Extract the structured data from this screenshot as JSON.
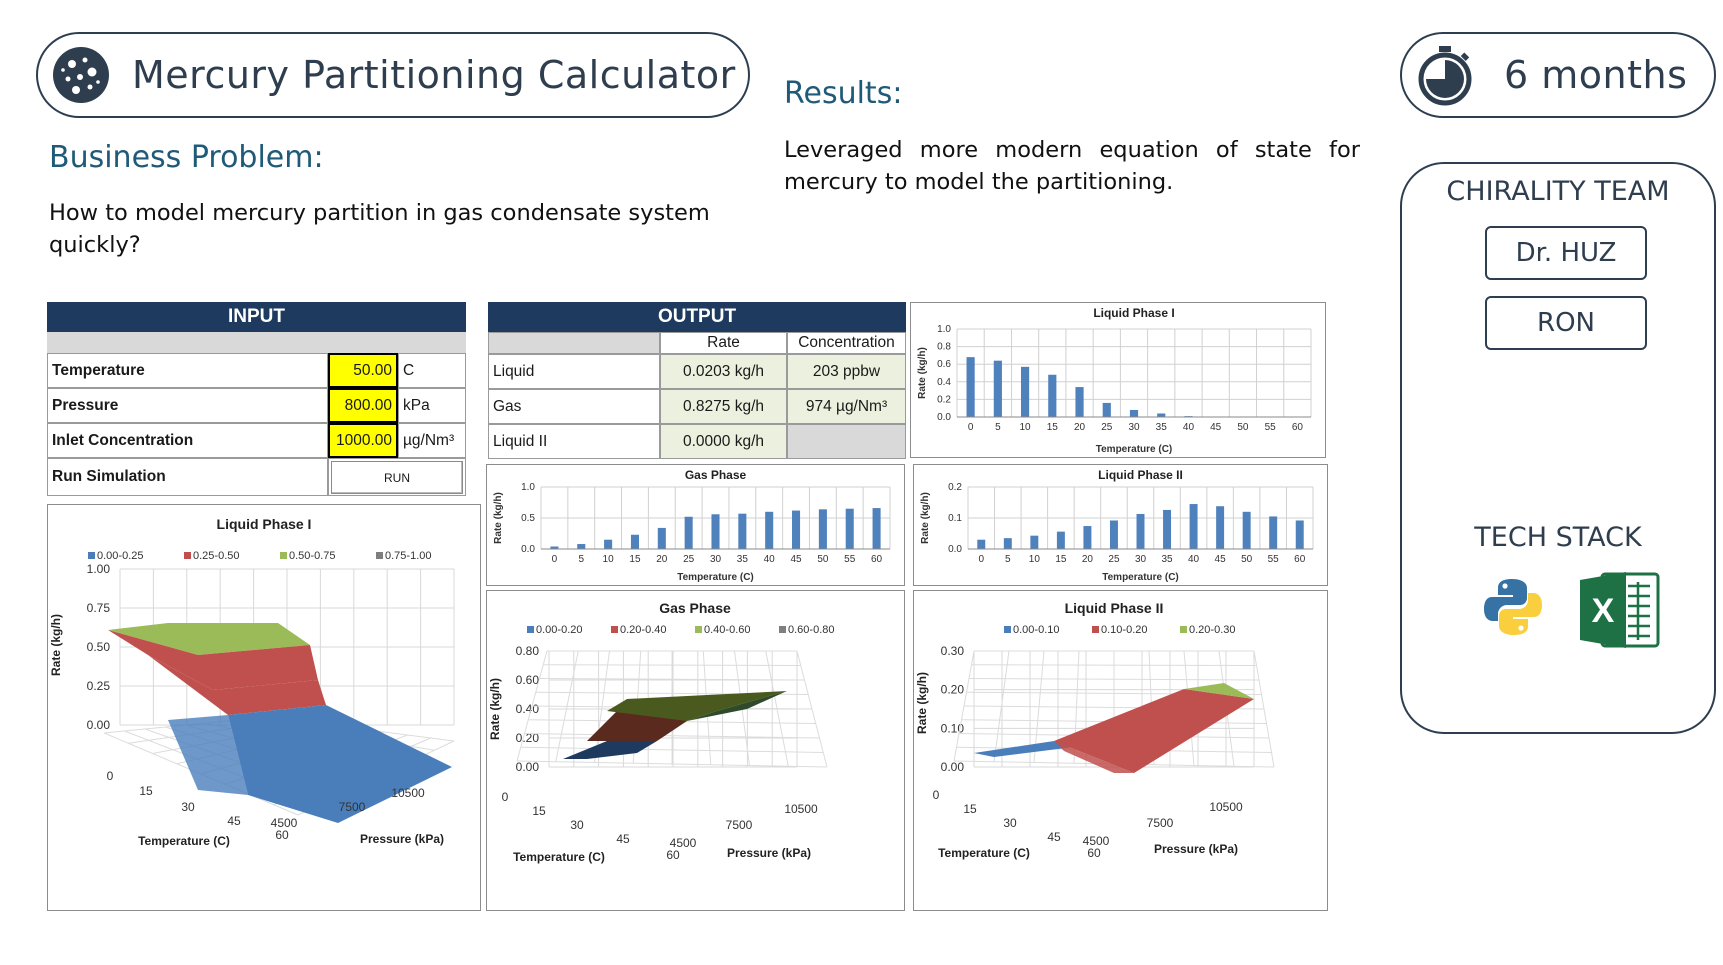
{
  "header": {
    "title": "Mercury Partitioning Calculator",
    "duration": "6 months"
  },
  "business_problem": {
    "heading": "Business Problem:",
    "text_line1": "How to model mercury partition in gas condensate system",
    "text_line2": "quickly?"
  },
  "results": {
    "heading": "Results:",
    "text": "Leveraged more modern equation of state for mercury to model the partitioning."
  },
  "team": {
    "heading": "CHIRALITY TEAM",
    "members": [
      "Dr. HUZ",
      "RON"
    ],
    "tech_heading": "TECH STACK",
    "tech_icons": [
      "python-icon",
      "excel-icon"
    ]
  },
  "input": {
    "header": "INPUT",
    "rows": [
      {
        "label": "Temperature",
        "value": "50.00",
        "unit": "C"
      },
      {
        "label": "Pressure",
        "value": "800.00",
        "unit": "kPa"
      },
      {
        "label": "Inlet Concentration",
        "value": "1000.00",
        "unit": "µg/Nm³"
      }
    ],
    "run_label": "Run Simulation",
    "run_button": "RUN"
  },
  "output": {
    "header": "OUTPUT",
    "col_rate": "Rate",
    "col_conc": "Concentration",
    "rows": [
      {
        "label": "Liquid",
        "rate": "0.0203  kg/h",
        "conc": "203  ppbw"
      },
      {
        "label": "Gas",
        "rate": "0.8275  kg/h",
        "conc": "974  µg/Nm³"
      },
      {
        "label": "Liquid II",
        "rate": "0.0000  kg/h",
        "conc": ""
      }
    ]
  },
  "colors": {
    "navy": "#1e3a5f",
    "bar": "#4f81bd",
    "blue": "#4a7ebb",
    "red": "#c0504d",
    "green": "#9bbb59",
    "grey": "#7f7f7f",
    "accent_text": "#1f5a78"
  },
  "chart_data": [
    {
      "type": "bar",
      "title": "Liquid Phase I",
      "xlabel": "Temperature (C)",
      "ylabel": "Rate (kg/h)",
      "ylim": [
        0,
        1.0
      ],
      "yticks": [
        "0.0",
        "0.2",
        "0.4",
        "0.6",
        "0.8",
        "1.0"
      ],
      "categories": [
        "0",
        "5",
        "10",
        "15",
        "20",
        "25",
        "30",
        "35",
        "40",
        "45",
        "50",
        "55",
        "60"
      ],
      "values": [
        0.68,
        0.64,
        0.57,
        0.48,
        0.34,
        0.16,
        0.08,
        0.04,
        0.01,
        0,
        0,
        0,
        0
      ]
    },
    {
      "type": "bar",
      "title": "Gas Phase",
      "xlabel": "Temperature (C)",
      "ylabel": "Rate (kg/h)",
      "ylim": [
        0,
        1.0
      ],
      "yticks": [
        "0.0",
        "0.5",
        "1.0"
      ],
      "categories": [
        "0",
        "5",
        "10",
        "15",
        "20",
        "25",
        "30",
        "35",
        "40",
        "45",
        "50",
        "55",
        "60"
      ],
      "values": [
        0.04,
        0.08,
        0.15,
        0.23,
        0.34,
        0.52,
        0.56,
        0.57,
        0.6,
        0.62,
        0.64,
        0.65,
        0.66
      ]
    },
    {
      "type": "bar",
      "title": "Liquid Phase II",
      "xlabel": "Temperature (C)",
      "ylabel": "Rate (kg/h)",
      "ylim": [
        0,
        0.2
      ],
      "yticks": [
        "0.0",
        "0.1",
        "0.2"
      ],
      "categories": [
        "0",
        "5",
        "10",
        "15",
        "20",
        "25",
        "30",
        "35",
        "40",
        "45",
        "50",
        "55",
        "60"
      ],
      "values": [
        0.03,
        0.035,
        0.043,
        0.056,
        0.074,
        0.092,
        0.113,
        0.126,
        0.145,
        0.138,
        0.12,
        0.105,
        0.092
      ]
    },
    {
      "type": "area",
      "title": "Liquid Phase I",
      "xlabel": "Temperature (C)",
      "zlabel": "Pressure (kPa)",
      "ylabel": "Rate (kg/h)",
      "yticks": [
        "0.00",
        "0.25",
        "0.50",
        "0.75",
        "1.00"
      ],
      "xticks": [
        "0",
        "15",
        "30",
        "45",
        "60"
      ],
      "ztick_labels": [
        "4500",
        "7500",
        "10500"
      ],
      "legend": [
        "0.00-0.25",
        "0.25-0.50",
        "0.50-0.75",
        "0.75-1.00"
      ]
    },
    {
      "type": "area",
      "title": "Gas Phase",
      "xlabel": "Temperature (C)",
      "zlabel": "Pressure (kPa)",
      "ylabel": "Rate (kg/h)",
      "yticks": [
        "0.00",
        "0.20",
        "0.40",
        "0.60",
        "0.80"
      ],
      "xticks": [
        "0",
        "15",
        "30",
        "45",
        "60"
      ],
      "ztick_labels": [
        "4500",
        "7500",
        "10500"
      ],
      "legend": [
        "0.00-0.20",
        "0.20-0.40",
        "0.40-0.60",
        "0.60-0.80"
      ]
    },
    {
      "type": "area",
      "title": "Liquid Phase II",
      "xlabel": "Temperature (C)",
      "zlabel": "Pressure (kPa)",
      "ylabel": "Rate (kg/h)",
      "yticks": [
        "0.00",
        "0.10",
        "0.20",
        "0.30"
      ],
      "xticks": [
        "0",
        "15",
        "30",
        "45",
        "60"
      ],
      "ztick_labels": [
        "4500",
        "7500",
        "10500"
      ],
      "legend": [
        "0.00-0.10",
        "0.10-0.20",
        "0.20-0.30"
      ]
    }
  ]
}
